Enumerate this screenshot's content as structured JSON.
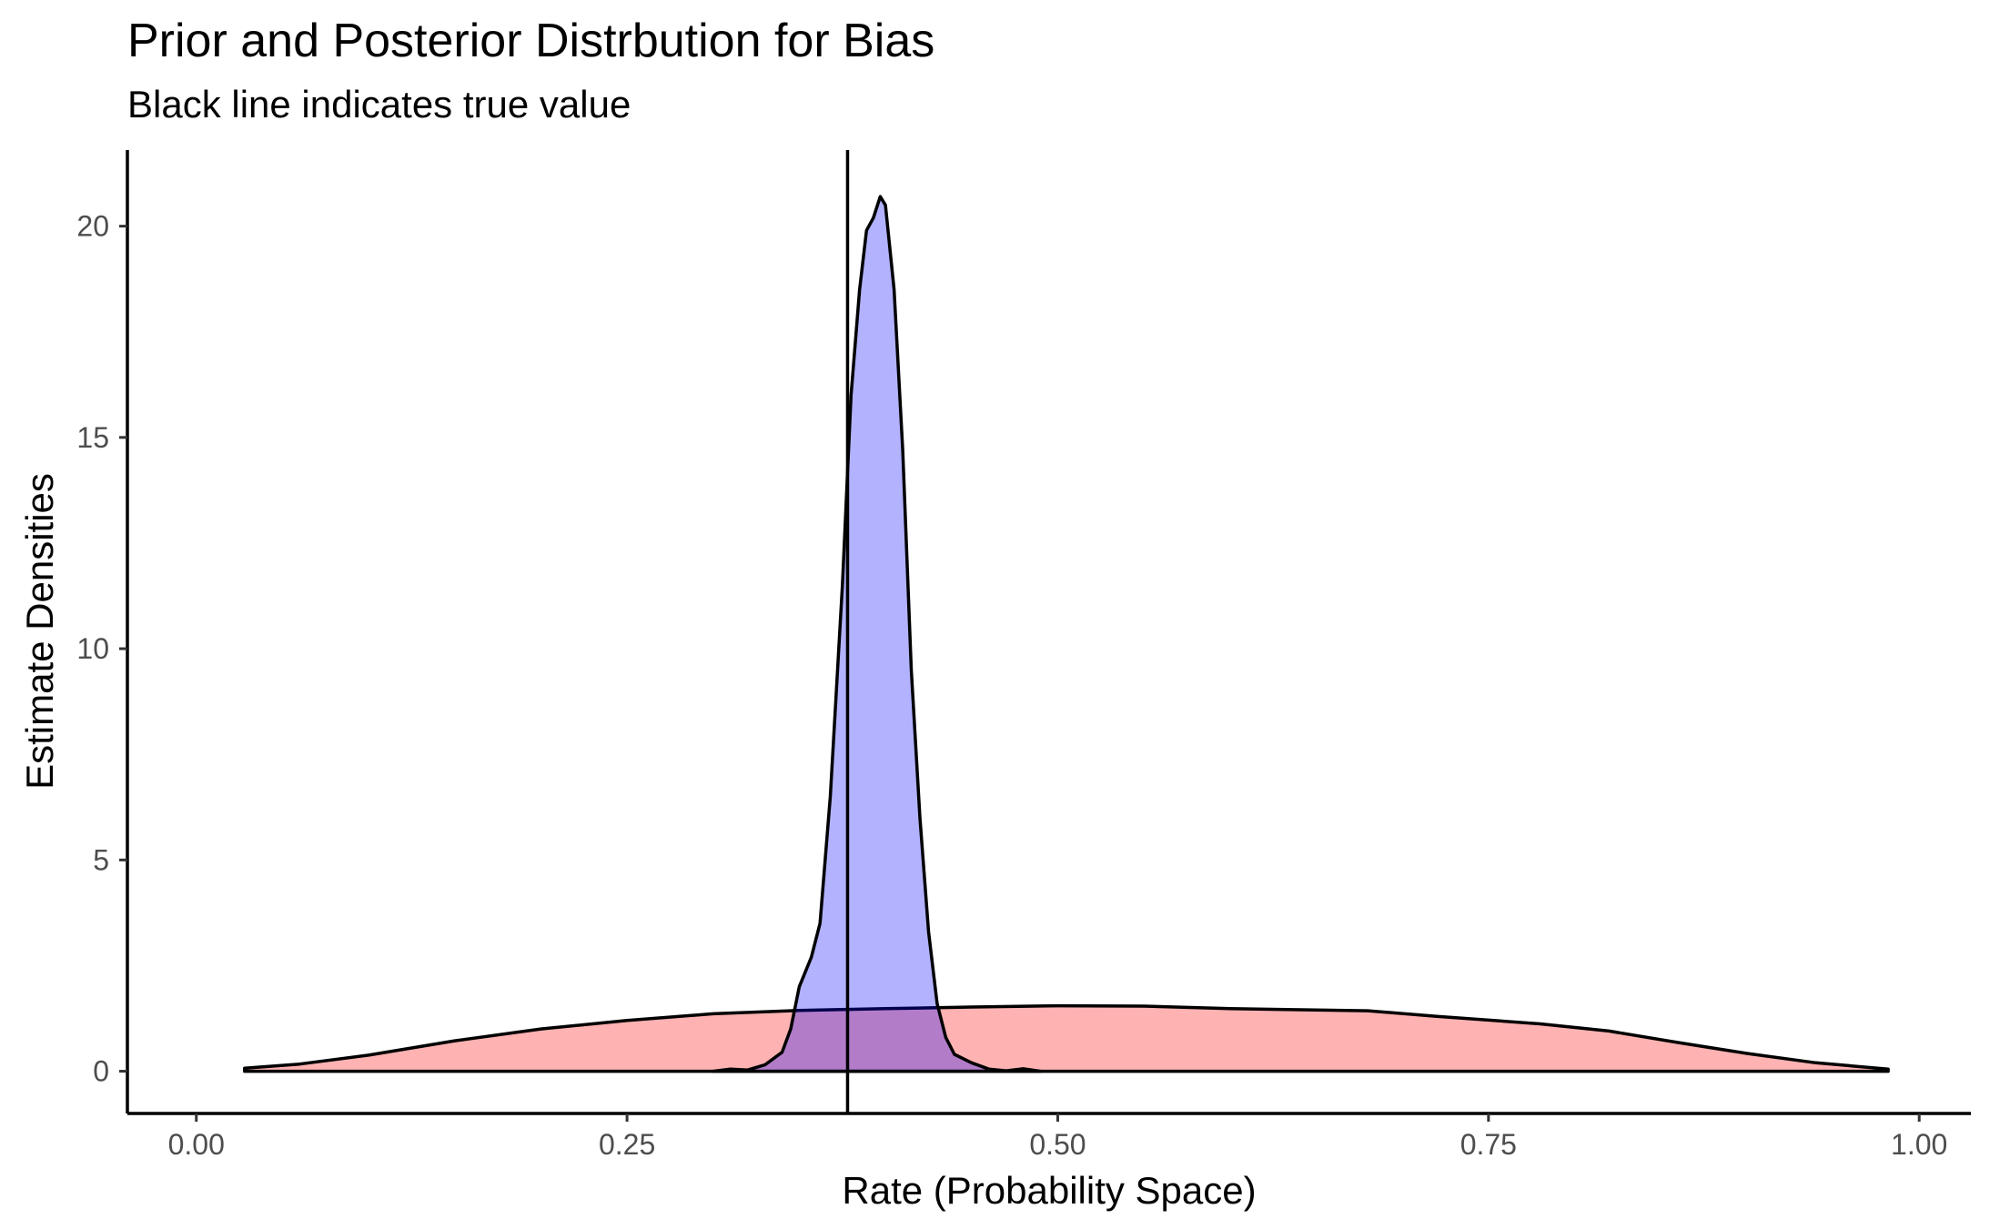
{
  "chart_data": {
    "type": "area",
    "title": "Prior and Posterior Distrbution for Bias",
    "subtitle": "Black line indicates true value",
    "xlabel": "Rate (Probability Space)",
    "ylabel": "Estimate Densities",
    "xlim": [
      -0.04,
      1.03
    ],
    "ylim": [
      -1.0,
      21.8
    ],
    "x_ticks": [
      0.0,
      0.25,
      0.5,
      0.75,
      1.0
    ],
    "x_tick_labels": [
      "0.00",
      "0.25",
      "0.50",
      "0.75",
      "1.00"
    ],
    "y_ticks": [
      0,
      5,
      10,
      15,
      20
    ],
    "y_tick_labels": [
      "0",
      "5",
      "10",
      "15",
      "20"
    ],
    "grid": false,
    "true_value": 0.378,
    "series": [
      {
        "fill": "#ff0000",
        "fill_opacity": 0.3,
        "points": [
          [
            0.028,
            0.07
          ],
          [
            0.06,
            0.17
          ],
          [
            0.1,
            0.38
          ],
          [
            0.15,
            0.72
          ],
          [
            0.2,
            1.0
          ],
          [
            0.25,
            1.2
          ],
          [
            0.3,
            1.36
          ],
          [
            0.35,
            1.44
          ],
          [
            0.4,
            1.48
          ],
          [
            0.45,
            1.52
          ],
          [
            0.5,
            1.55
          ],
          [
            0.55,
            1.54
          ],
          [
            0.6,
            1.48
          ],
          [
            0.65,
            1.45
          ],
          [
            0.68,
            1.43
          ],
          [
            0.72,
            1.3
          ],
          [
            0.78,
            1.12
          ],
          [
            0.82,
            0.95
          ],
          [
            0.86,
            0.68
          ],
          [
            0.9,
            0.42
          ],
          [
            0.94,
            0.2
          ],
          [
            0.982,
            0.05
          ]
        ]
      },
      {
        "fill": "#0000ff",
        "fill_opacity": 0.3,
        "points": [
          [
            0.3,
            0.0
          ],
          [
            0.31,
            0.05
          ],
          [
            0.32,
            0.03
          ],
          [
            0.33,
            0.15
          ],
          [
            0.34,
            0.45
          ],
          [
            0.345,
            1.0
          ],
          [
            0.35,
            2.0
          ],
          [
            0.357,
            2.7
          ],
          [
            0.362,
            3.5
          ],
          [
            0.368,
            6.5
          ],
          [
            0.375,
            11.5
          ],
          [
            0.38,
            16.0
          ],
          [
            0.385,
            18.5
          ],
          [
            0.389,
            19.9
          ],
          [
            0.393,
            20.2
          ],
          [
            0.397,
            20.7
          ],
          [
            0.4,
            20.5
          ],
          [
            0.405,
            18.5
          ],
          [
            0.41,
            14.7
          ],
          [
            0.415,
            9.5
          ],
          [
            0.42,
            6.0
          ],
          [
            0.425,
            3.3
          ],
          [
            0.43,
            1.6
          ],
          [
            0.435,
            0.8
          ],
          [
            0.44,
            0.4
          ],
          [
            0.45,
            0.2
          ],
          [
            0.46,
            0.05
          ],
          [
            0.47,
            0.01
          ],
          [
            0.48,
            0.06
          ],
          [
            0.49,
            0.0
          ]
        ]
      }
    ]
  }
}
